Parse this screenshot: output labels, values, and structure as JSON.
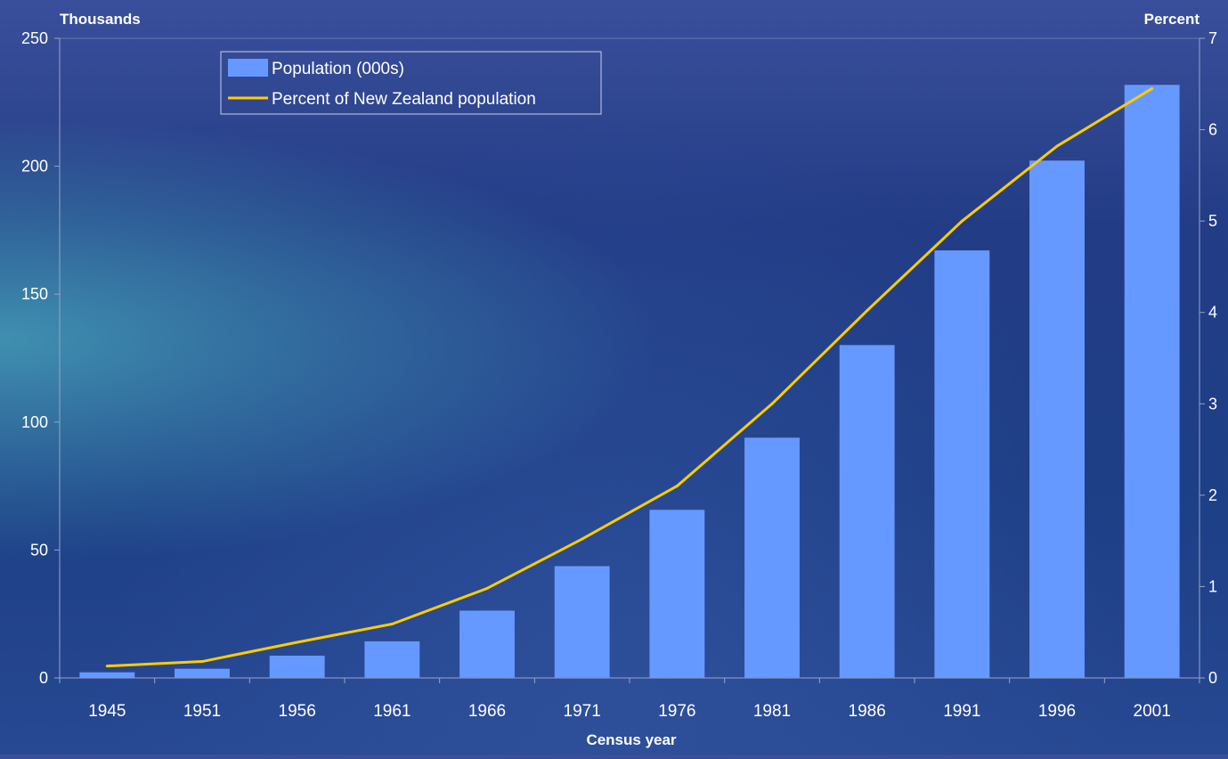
{
  "chart_data": {
    "type": "bar",
    "categories": [
      "1945",
      "1951",
      "1956",
      "1961",
      "1966",
      "1971",
      "1976",
      "1981",
      "1986",
      "1991",
      "1996",
      "2001"
    ],
    "series": [
      {
        "name": "Population (000s)",
        "type": "bar",
        "axis": "left",
        "values": [
          2.2,
          3.6,
          8.7,
          14.3,
          26.3,
          43.7,
          65.7,
          93.9,
          130.1,
          167.1,
          202.2,
          231.8
        ]
      },
      {
        "name": "Percent of New Zealand population",
        "type": "line",
        "axis": "right",
        "values": [
          0.13,
          0.18,
          0.39,
          0.59,
          0.98,
          1.52,
          2.1,
          3.0,
          4.02,
          5.0,
          5.82,
          6.45
        ]
      }
    ],
    "xlabel": "Census year",
    "ylabel_left": "Thousands",
    "ylabel_right": "Percent",
    "ylim_left": [
      0,
      250
    ],
    "ylim_right": [
      0,
      7
    ],
    "yticks_left": [
      "0",
      "50",
      "100",
      "150",
      "200",
      "250"
    ],
    "yticks_right": [
      "0",
      "1",
      "2",
      "3",
      "4",
      "5",
      "6",
      "7"
    ],
    "grid": false,
    "legend_position": "top-left",
    "colors": {
      "bar": "#6699ff",
      "line": "#ffcc00",
      "text": "#ffffff",
      "axis": "#9aa3c8"
    }
  }
}
